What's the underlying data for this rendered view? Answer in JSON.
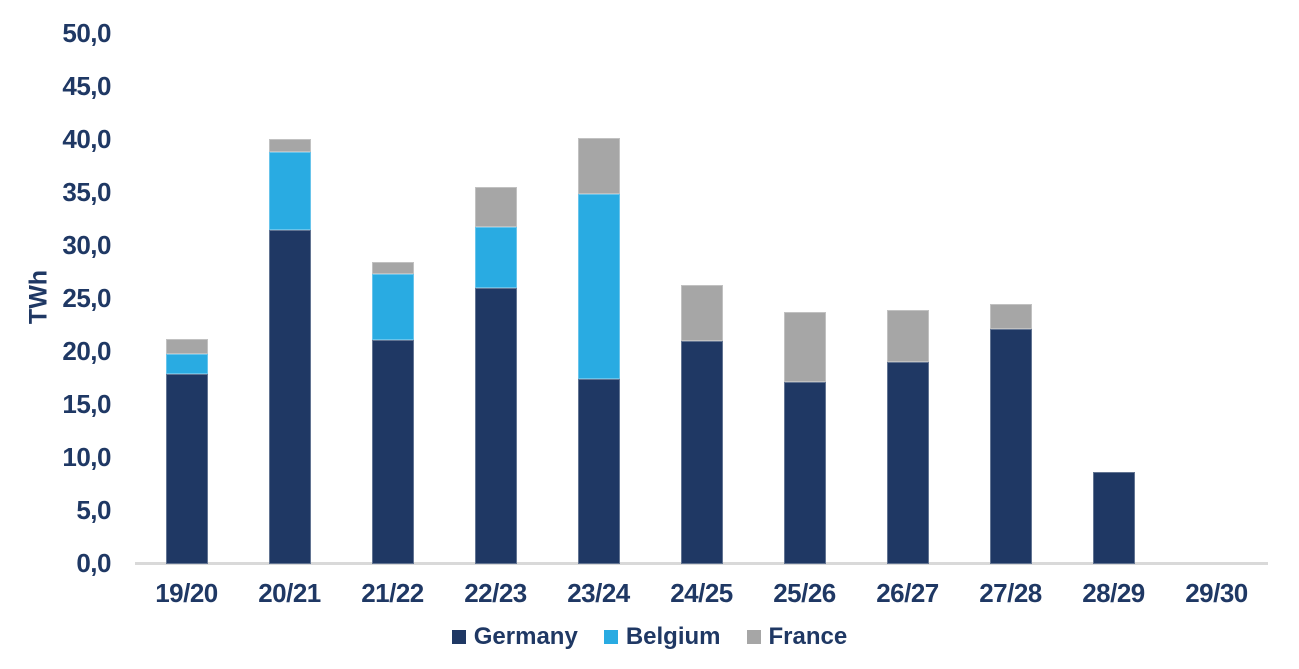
{
  "chart_data": {
    "type": "bar",
    "stacked": true,
    "title": "",
    "ylabel": "TWh",
    "xlabel": "",
    "categories": [
      "19/20",
      "20/21",
      "21/22",
      "22/23",
      "23/24",
      "24/25",
      "25/26",
      "26/27",
      "27/28",
      "28/29",
      "29/30"
    ],
    "series": [
      {
        "name": "Germany",
        "color": "#1f3864",
        "values": [
          17.9,
          31.5,
          21.1,
          26.0,
          17.5,
          21.0,
          17.2,
          19.1,
          22.2,
          8.7,
          0
        ]
      },
      {
        "name": "Belgium",
        "color": "#29abe2",
        "values": [
          1.9,
          7.4,
          6.3,
          5.8,
          17.4,
          0,
          0,
          0,
          0,
          0,
          0
        ]
      },
      {
        "name": "France",
        "color": "#a6a6a6",
        "values": [
          1.4,
          1.2,
          1.1,
          3.8,
          5.3,
          5.3,
          6.6,
          4.9,
          2.3,
          0,
          0
        ]
      }
    ],
    "ylim": [
      0,
      50
    ],
    "ytick_step": 5,
    "ytick_labels": [
      "0,0",
      "5,0",
      "10,0",
      "15,0",
      "20,0",
      "25,0",
      "30,0",
      "35,0",
      "40,0",
      "45,0",
      "50,0"
    ],
    "decimal_separator": ",",
    "grid": false,
    "legend_position": "bottom"
  },
  "colors": {
    "text": "#1f3864",
    "axis_line": "#d9d9d9",
    "background": "#ffffff"
  }
}
